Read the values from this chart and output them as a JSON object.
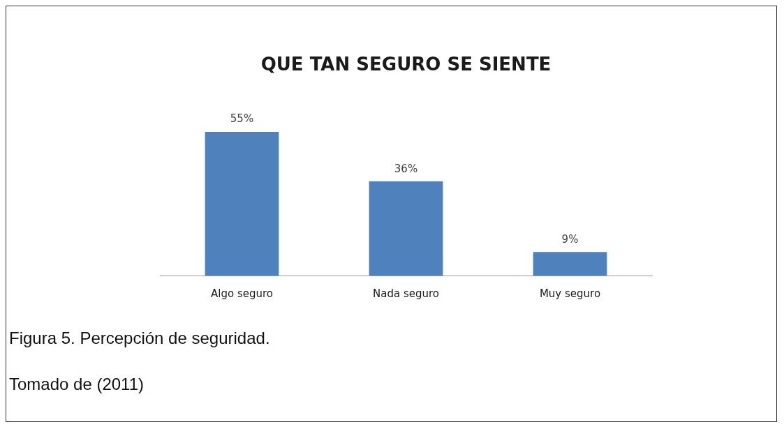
{
  "chart_data": {
    "type": "bar",
    "title": "QUE TAN SEGURO SE SIENTE",
    "categories": [
      "Algo seguro",
      "Nada seguro",
      "Muy seguro"
    ],
    "values": [
      55,
      36,
      9
    ],
    "color": "#4f81bd",
    "data_labels": true,
    "value_labels": [
      "55%",
      "36%",
      "9%"
    ],
    "grid": false,
    "legend": false,
    "annotations": [
      "Figura 5. Percepción de seguridad.",
      "Tomado de (2011)"
    ]
  }
}
